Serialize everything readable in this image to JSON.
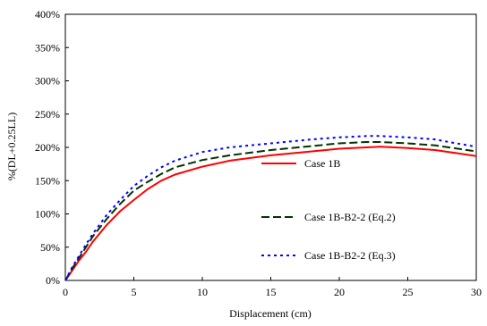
{
  "chart_data": {
    "type": "line",
    "title": "",
    "xlabel": "Displacement  (cm)",
    "ylabel": "%(DL+0.25LL)",
    "xlim": [
      0,
      30
    ],
    "ylim": [
      0,
      400
    ],
    "x_ticks": [
      0,
      5,
      10,
      15,
      20,
      25,
      30
    ],
    "x_tick_labels": [
      "0",
      "5",
      "10",
      "15",
      "20",
      "25",
      "30"
    ],
    "y_ticks": [
      0,
      50,
      100,
      150,
      200,
      250,
      300,
      350,
      400
    ],
    "y_tick_labels": [
      "0%",
      "50%",
      "100%",
      "150%",
      "200%",
      "250%",
      "300%",
      "350%",
      "400%"
    ],
    "grid": false,
    "legend_position": "right",
    "series": [
      {
        "name": "Case 1B",
        "color": "#ff0000",
        "dash": "solid",
        "x": [
          0,
          0.5,
          1,
          1.5,
          2,
          3,
          4,
          5,
          6,
          7,
          8,
          10,
          12,
          15,
          18,
          20,
          22,
          23,
          25,
          27,
          28,
          30
        ],
        "y": [
          0,
          15,
          30,
          43,
          58,
          83,
          104,
          121,
          137,
          150,
          159,
          171,
          180,
          188,
          194,
          198,
          200,
          201,
          199,
          196,
          193,
          187
        ]
      },
      {
        "name": "Case 1B-B2-2 (Eq.2)",
        "color": "#003300",
        "dash": "long-dash",
        "x": [
          0,
          0.5,
          1,
          1.5,
          2,
          3,
          4,
          5,
          6,
          7,
          8,
          10,
          12,
          15,
          18,
          20,
          22,
          23,
          25,
          27,
          28,
          30
        ],
        "y": [
          0,
          18,
          34,
          50,
          66,
          92,
          115,
          135,
          148,
          160,
          170,
          181,
          188,
          196,
          202,
          206,
          208,
          208,
          206,
          203,
          200,
          194
        ]
      },
      {
        "name": "Case 1B-B2-2 (Eq.3)",
        "color": "#0000ff",
        "dash": "dot",
        "x": [
          0,
          0.5,
          1,
          1.5,
          2,
          3,
          4,
          5,
          6,
          7,
          8,
          10,
          12,
          15,
          18,
          20,
          22,
          23,
          25,
          27,
          28,
          30
        ],
        "y": [
          0,
          20,
          37,
          54,
          70,
          98,
          121,
          142,
          157,
          170,
          180,
          193,
          200,
          206,
          212,
          215,
          217,
          217,
          215,
          212,
          208,
          201
        ]
      }
    ]
  }
}
